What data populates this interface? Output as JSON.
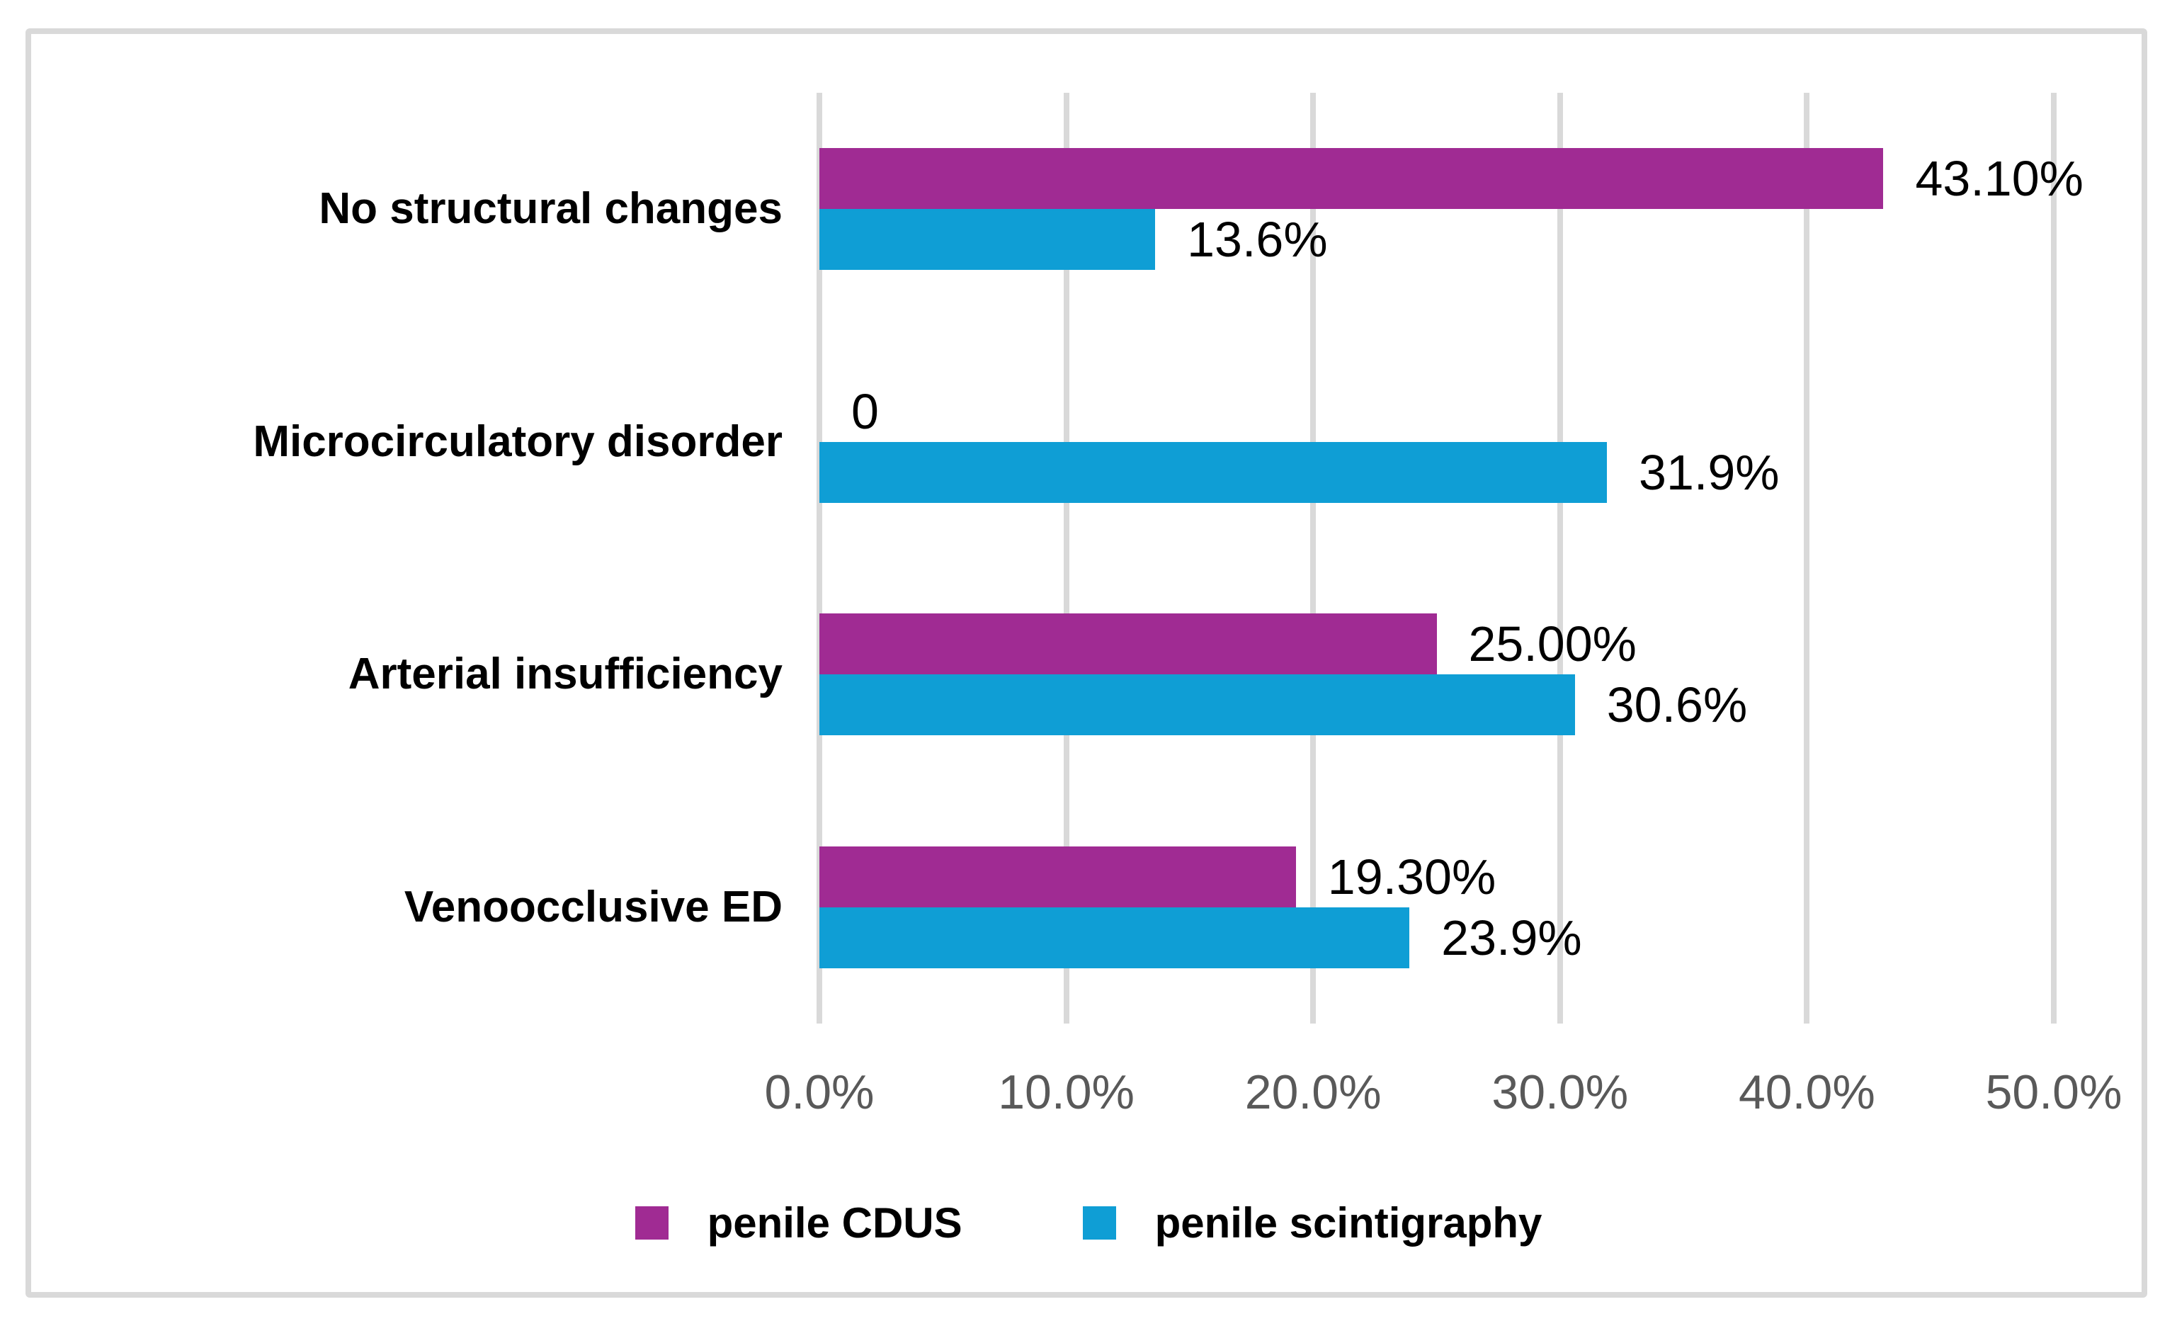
{
  "chart_data": {
    "type": "bar",
    "orientation": "horizontal",
    "title": "",
    "categories": [
      "No structural changes",
      "Microcirculatory disorder",
      "Arterial insufficiency",
      "Venoocclusive ED"
    ],
    "series": [
      {
        "name": "penile CDUS",
        "color": "#A02B93",
        "values": [
          43.1,
          0,
          25.0,
          19.3
        ],
        "labels": [
          "43.10%",
          "0",
          "25.00%",
          "19.30%"
        ]
      },
      {
        "name": "penile scintigraphy",
        "color": "#0F9ED5",
        "values": [
          13.6,
          31.9,
          30.6,
          23.9
        ],
        "labels": [
          "13.6%",
          "31.9%",
          "30.6%",
          "23.9%"
        ]
      }
    ],
    "x_axis": {
      "min": 0,
      "max": 50,
      "tick_step": 10,
      "ticks": [
        "0.0%",
        "10.0%",
        "20.0%",
        "30.0%",
        "40.0%",
        "50.0%"
      ]
    },
    "grid": true,
    "legend_position": "bottom",
    "colors": {
      "gridline": "#D9D9D9",
      "tick_label": "#595959",
      "data_label": "#000000",
      "frame_border": "#D9D9D9",
      "background": "#FFFFFF"
    }
  }
}
